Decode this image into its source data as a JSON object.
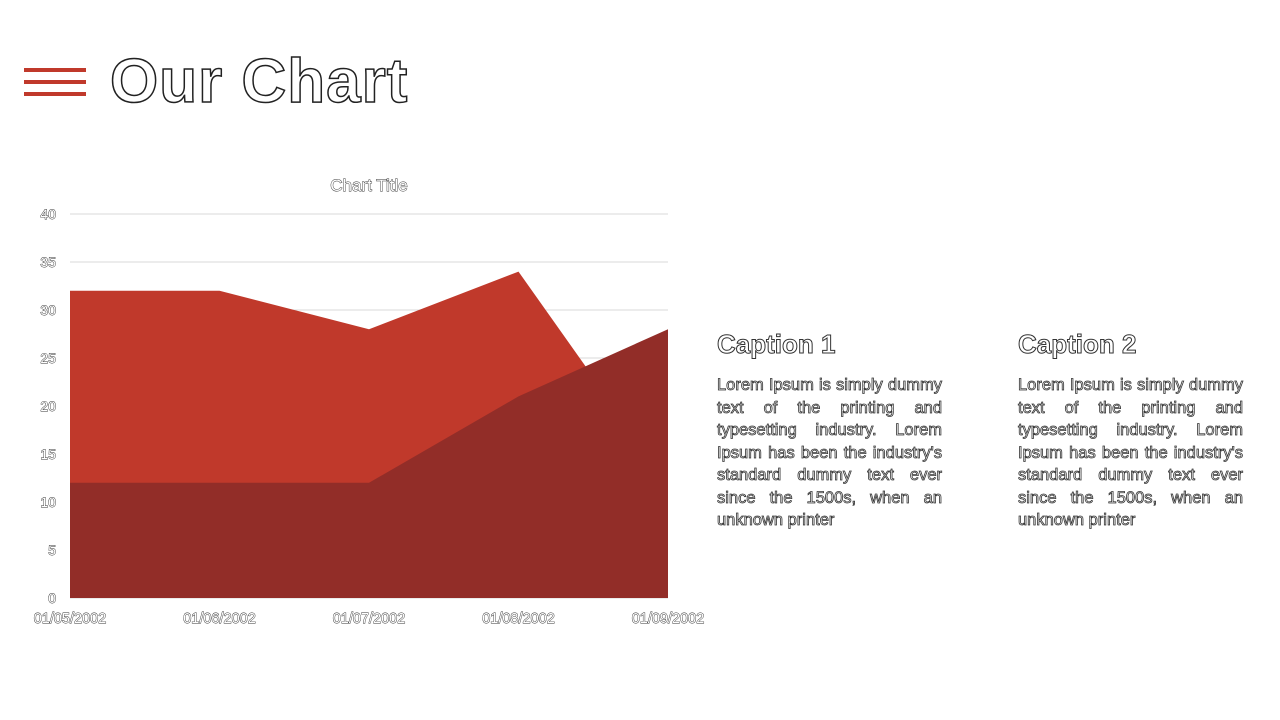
{
  "header": {
    "title": "Our Chart",
    "menu_icon": "hamburger-menu-icon",
    "accent_color": "#c0392b"
  },
  "chart_data": {
    "type": "area",
    "title": "Chart Title",
    "categories": [
      "01/05/2002",
      "01/06/2002",
      "01/07/2002",
      "01/08/2002",
      "01/09/2002"
    ],
    "series": [
      {
        "values": [
          32,
          32,
          28,
          34,
          12
        ],
        "color": "#c0392b"
      },
      {
        "values": [
          12,
          12,
          12,
          21,
          28
        ],
        "color": "#922d28"
      }
    ],
    "ylim": [
      0,
      40
    ],
    "yticks": [
      0,
      5,
      10,
      15,
      20,
      25,
      30,
      35,
      40
    ],
    "grid": true,
    "legend": "none"
  },
  "captions": [
    {
      "heading": "Caption 1",
      "body": "Lorem Ipsum is simply dummy text of the printing and typesetting industry. Lorem Ipsum has been the industry's standard dummy text ever since the 1500s, when an unknown printer"
    },
    {
      "heading": "Caption 2",
      "body": "Lorem Ipsum is simply dummy text of the printing and typesetting industry. Lorem Ipsum has been the industry's standard dummy text ever since the 1500s, when an unknown printer"
    }
  ]
}
